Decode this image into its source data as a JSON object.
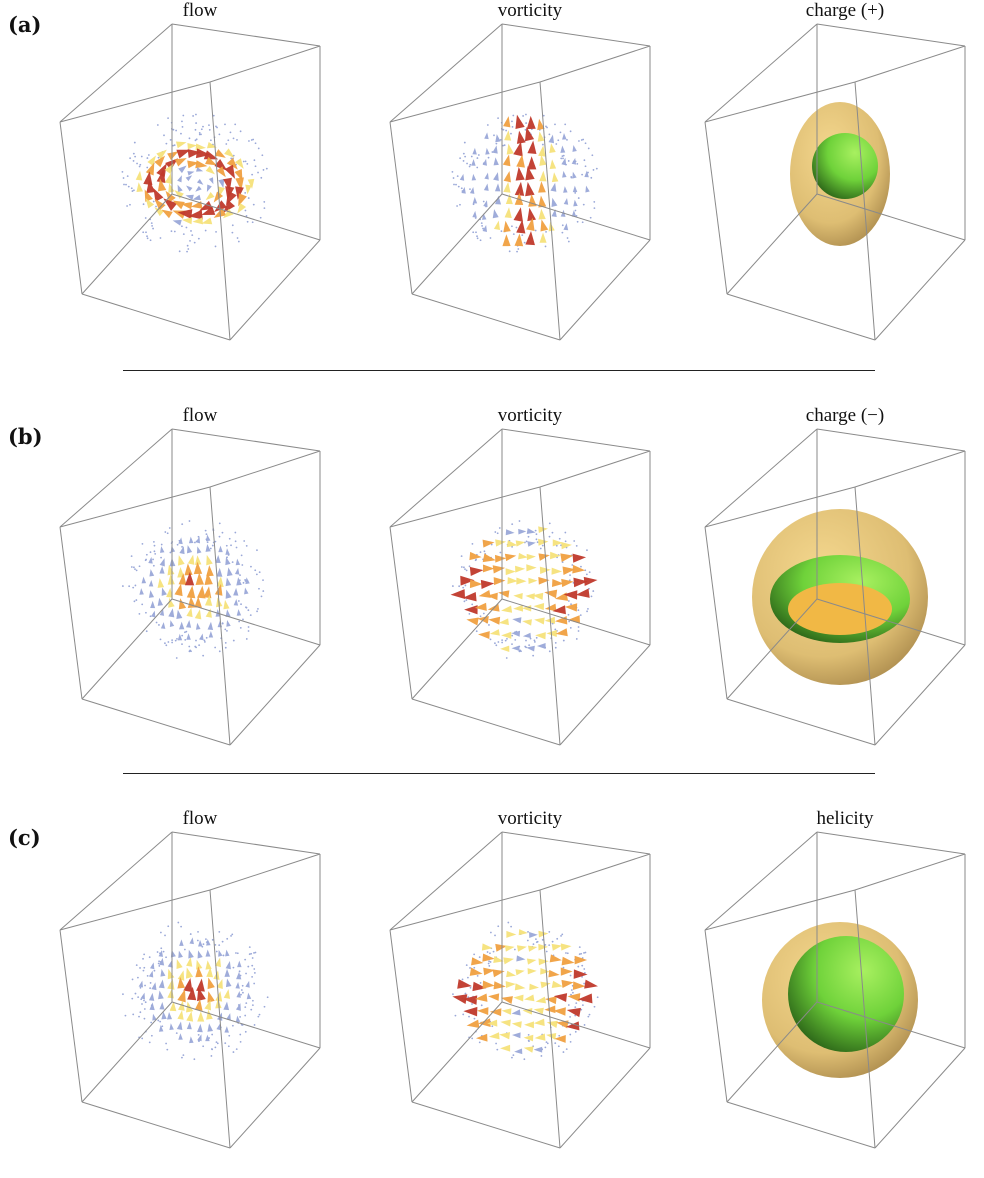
{
  "rows": [
    {
      "label": "(a)",
      "panels": [
        {
          "title": "flow",
          "kind": "flow-a"
        },
        {
          "title": "vorticity",
          "kind": "vort-a"
        },
        {
          "title": "charge (+)",
          "kind": "charge-plus"
        }
      ]
    },
    {
      "label": "(b)",
      "panels": [
        {
          "title": "flow",
          "kind": "flow-b"
        },
        {
          "title": "vorticity",
          "kind": "vort-b"
        },
        {
          "title": "charge (−)",
          "kind": "charge-minus"
        }
      ]
    },
    {
      "label": "(c)",
      "panels": [
        {
          "title": "flow",
          "kind": "flow-c"
        },
        {
          "title": "vorticity",
          "kind": "vort-c"
        },
        {
          "title": "helicity",
          "kind": "helicity"
        }
      ]
    }
  ],
  "colors": {
    "box_edge": "#8a8a8a",
    "arrow_strong": "#c0392b",
    "arrow_mid": "#f0a040",
    "arrow_weak": "#f6e27a",
    "arrow_faint": "#9aa8d8",
    "outer_shell": "#d8b25a",
    "inner_shell": "#6fd23a"
  }
}
